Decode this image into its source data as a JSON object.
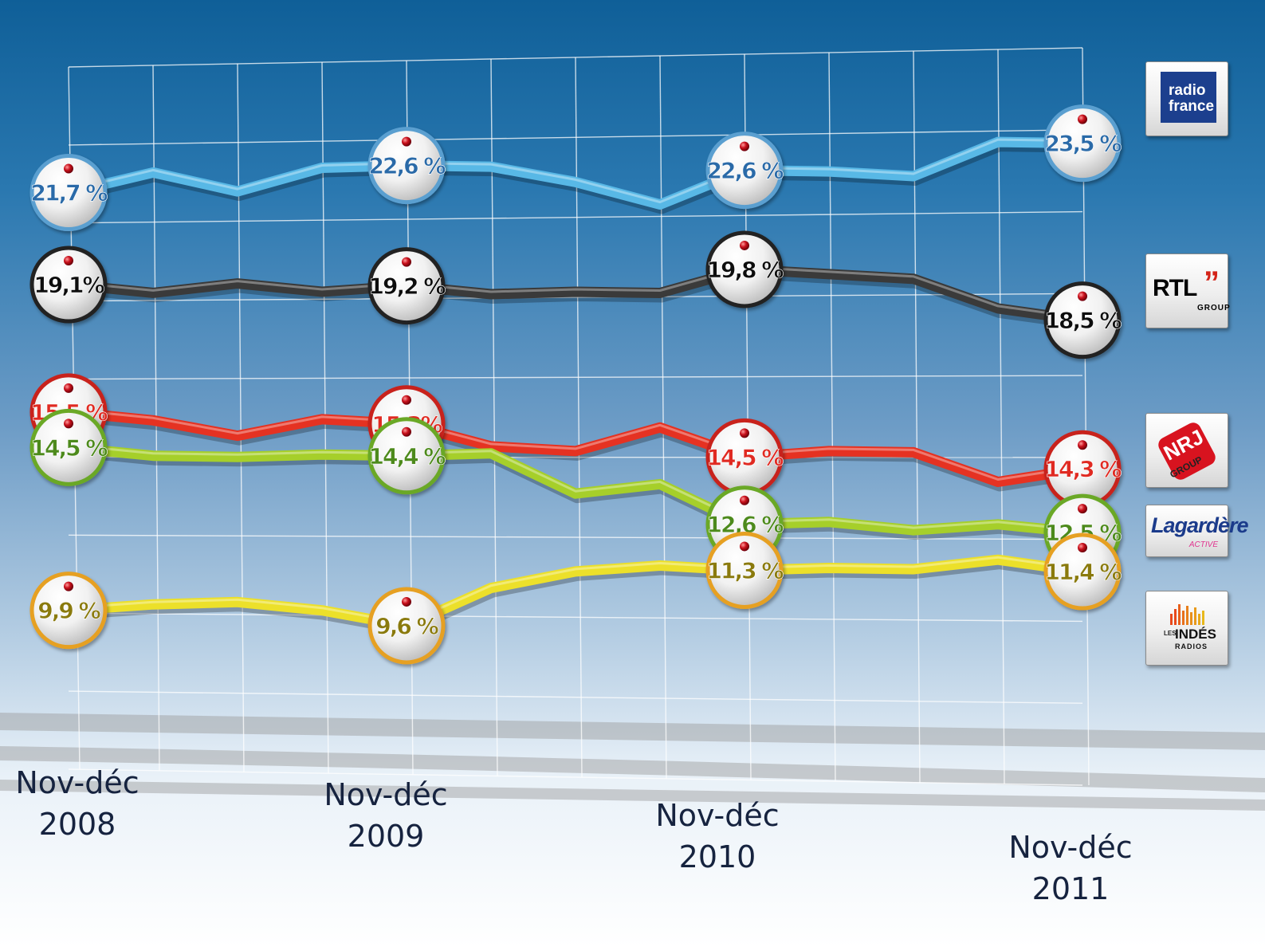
{
  "chart_data": {
    "type": "line",
    "x": [
      "Nov-déc 2008",
      "",
      "",
      "",
      "Nov-déc 2009",
      "",
      "",
      "",
      "Nov-déc 2010",
      "",
      "",
      "",
      "Nov-déc 2011"
    ],
    "xtick_labels": [
      {
        "index": 0,
        "line1": "Nov-déc",
        "line2": "2008"
      },
      {
        "index": 4,
        "line1": "Nov-déc",
        "line2": "2009"
      },
      {
        "index": 8,
        "line1": "Nov-déc",
        "line2": "2010"
      },
      {
        "index": 12,
        "line1": "Nov-déc",
        "line2": "2011"
      }
    ],
    "ylim": [
      8,
      25
    ],
    "grid": true,
    "series": [
      {
        "name": "radio france",
        "color": "#58b8e6",
        "labelColor": "#2a6aa8",
        "ringColor": "#5a9fd0",
        "values": [
          21.7,
          22.3,
          21.8,
          22.5,
          22.6,
          22.6,
          22.2,
          21.6,
          22.6,
          22.6,
          22.5,
          23.5,
          23.5
        ],
        "labels": [
          {
            "index": 0,
            "text": "21,7 %"
          },
          {
            "index": 4,
            "text": "22,6 %"
          },
          {
            "index": 8,
            "text": "22,6 %"
          },
          {
            "index": 12,
            "text": "23,5 %"
          }
        ]
      },
      {
        "name": "RTL GROUP",
        "color": "#3a3a3a",
        "labelColor": "#111111",
        "ringColor": "#222222",
        "values": [
          19.1,
          18.9,
          19.2,
          19.0,
          19.2,
          19.0,
          19.1,
          19.1,
          19.8,
          19.7,
          19.6,
          18.8,
          18.5
        ],
        "labels": [
          {
            "index": 0,
            "text": "19,1%"
          },
          {
            "index": 4,
            "text": "19,2 %"
          },
          {
            "index": 8,
            "text": "19,8 %"
          },
          {
            "index": 12,
            "text": "18,5 %"
          }
        ]
      },
      {
        "name": "NRJ GROUP",
        "color": "#e53222",
        "labelColor": "#e02a20",
        "ringColor": "#c8241c",
        "values": [
          15.5,
          15.3,
          14.9,
          15.4,
          15.3,
          14.7,
          14.6,
          15.3,
          14.5,
          14.7,
          14.7,
          13.9,
          14.3
        ],
        "labels": [
          {
            "index": 0,
            "text": "15,5 %"
          },
          {
            "index": 4,
            "text": "15,3%"
          },
          {
            "index": 8,
            "text": "14,5 %"
          },
          {
            "index": 12,
            "text": "14,3 %"
          }
        ]
      },
      {
        "name": "Lagardère ACTIVE",
        "color": "#a6cf2a",
        "labelColor": "#4d8a1a",
        "ringColor": "#6aa828",
        "values": [
          14.5,
          14.3,
          14.3,
          14.4,
          14.4,
          14.5,
          13.4,
          13.7,
          12.6,
          12.7,
          12.5,
          12.7,
          12.5
        ],
        "labels": [
          {
            "index": 0,
            "text": "14,5 %"
          },
          {
            "index": 4,
            "text": "14,4 %"
          },
          {
            "index": 8,
            "text": "12,6 %"
          },
          {
            "index": 12,
            "text": "12,5 %"
          }
        ]
      },
      {
        "name": "LES INDÉS RADIOS",
        "color": "#ece02a",
        "labelColor": "#8a7a10",
        "ringColor": "#e6a020",
        "values": [
          9.9,
          10.1,
          10.2,
          10.0,
          9.6,
          10.7,
          11.2,
          11.4,
          11.3,
          11.4,
          11.4,
          11.7,
          11.4
        ],
        "labels": [
          {
            "index": 0,
            "text": "9,9 %"
          },
          {
            "index": 4,
            "text": "9,6 %"
          },
          {
            "index": 8,
            "text": "11,3 %"
          },
          {
            "index": 12,
            "text": "11,4 %"
          }
        ]
      }
    ]
  },
  "logos": {
    "radio_france": {
      "line1": "radio",
      "line2": "france"
    },
    "rtl": {
      "name": "RTL",
      "quote": "”",
      "sub": "GROUP"
    },
    "nrj": {
      "name": "NRJ",
      "sub": "GROUP"
    },
    "lagardere": {
      "name": "Lagardère",
      "sub": "ACTIVE"
    },
    "indes": {
      "les": "LES",
      "name": "INDÉS",
      "sub": "RADIOS"
    }
  }
}
